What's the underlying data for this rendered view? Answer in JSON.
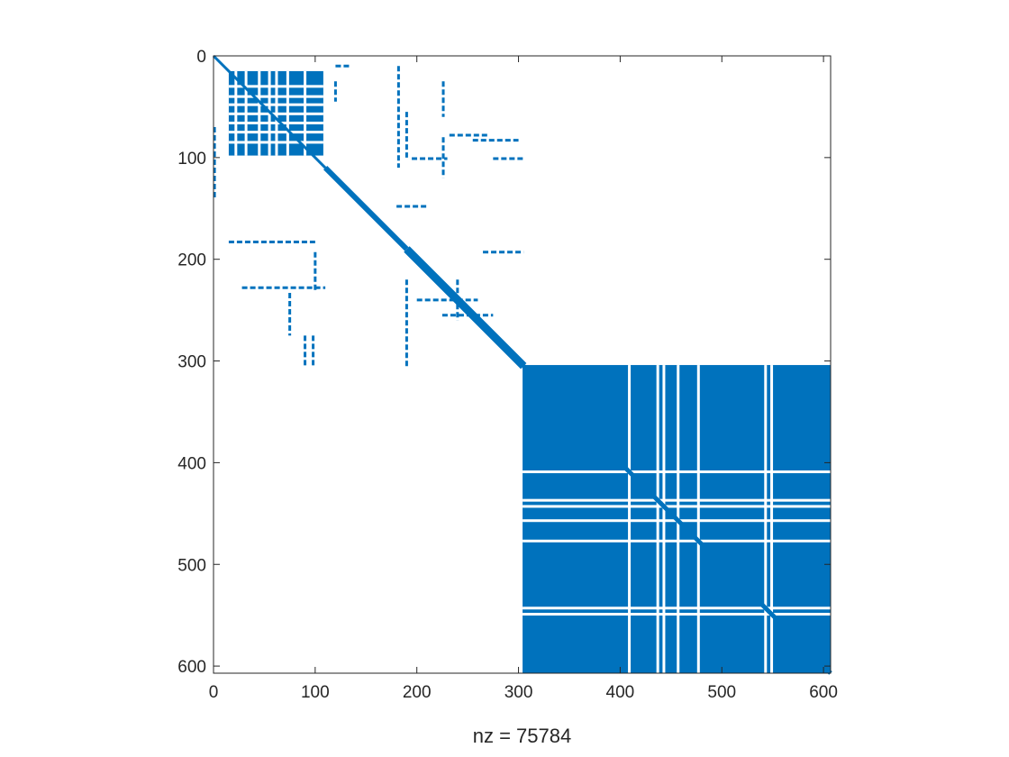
{
  "chart_data": {
    "type": "spy",
    "description_of_plot": "sparsity pattern of a 607x607 matrix",
    "xlabel": "nz = 75784",
    "ylabel": "",
    "title": "",
    "xlim": [
      0,
      607
    ],
    "ylim": [
      0,
      607
    ],
    "y_reversed": true,
    "xticks": [
      0,
      100,
      200,
      300,
      400,
      500,
      600
    ],
    "yticks": [
      0,
      100,
      200,
      300,
      400,
      500,
      600
    ],
    "xtick_labels": [
      "0",
      "100",
      "200",
      "300",
      "400",
      "500",
      "600"
    ],
    "ytick_labels": [
      "0",
      "100",
      "200",
      "300",
      "400",
      "500",
      "600"
    ],
    "grid": false,
    "marker_color": "#0072BD",
    "dense_block": {
      "rows": [
        304,
        607
      ],
      "cols": [
        304,
        607
      ],
      "empty_columns": [
        409,
        437,
        443,
        457,
        477,
        543,
        549
      ],
      "empty_rows": [
        409,
        437,
        443,
        457,
        477,
        543,
        549
      ]
    },
    "upper_block": {
      "rows": [
        15,
        98
      ],
      "cols": [
        15,
        108
      ],
      "empty_columns": [
        22,
        32,
        45,
        55,
        62,
        73,
        90
      ],
      "empty_rows": [
        30,
        40,
        48,
        57,
        66,
        75,
        85
      ]
    },
    "diagonal": [
      {
        "from": 0,
        "to": 110,
        "width": 3
      },
      {
        "from": 110,
        "to": 190,
        "width": 6
      },
      {
        "from": 190,
        "to": 305,
        "width": 9
      },
      {
        "from": 305,
        "to": 607,
        "width": 5
      }
    ],
    "segments": [
      {
        "type": "h",
        "row": 183,
        "col_from": 15,
        "col_to": 100
      },
      {
        "type": "h",
        "row": 228,
        "col_from": 28,
        "col_to": 110
      },
      {
        "type": "h",
        "row": 78,
        "col_from": 232,
        "col_to": 270
      },
      {
        "type": "h",
        "row": 101,
        "col_from": 195,
        "col_to": 230
      },
      {
        "type": "h",
        "row": 101,
        "col_from": 275,
        "col_to": 305
      },
      {
        "type": "h",
        "row": 10,
        "col_from": 120,
        "col_to": 135
      },
      {
        "type": "h",
        "row": 83,
        "col_from": 255,
        "col_to": 300
      },
      {
        "type": "h",
        "row": 193,
        "col_from": 265,
        "col_to": 305
      },
      {
        "type": "h",
        "row": 148,
        "col_from": 180,
        "col_to": 210
      },
      {
        "type": "h",
        "row": 255,
        "col_from": 225,
        "col_to": 275
      },
      {
        "type": "h",
        "row": 240,
        "col_from": 200,
        "col_to": 260
      },
      {
        "type": "v",
        "col": 75,
        "row_from": 233,
        "row_to": 275
      },
      {
        "type": "v",
        "col": 100,
        "row_from": 193,
        "row_to": 232
      },
      {
        "type": "v",
        "col": 90,
        "row_from": 275,
        "row_to": 305
      },
      {
        "type": "v",
        "col": 98,
        "row_from": 275,
        "row_to": 305
      },
      {
        "type": "v",
        "col": 120,
        "row_from": 25,
        "row_to": 45
      },
      {
        "type": "v",
        "col": 182,
        "row_from": 10,
        "row_to": 110
      },
      {
        "type": "v",
        "col": 226,
        "row_from": 25,
        "row_to": 60
      },
      {
        "type": "v",
        "col": 226,
        "row_from": 80,
        "row_to": 120
      },
      {
        "type": "v",
        "col": 190,
        "row_from": 220,
        "row_to": 305
      },
      {
        "type": "v",
        "col": 240,
        "row_from": 220,
        "row_to": 260
      },
      {
        "type": "v",
        "col": 1,
        "row_from": 70,
        "row_to": 140
      },
      {
        "type": "v",
        "col": 190,
        "row_from": 55,
        "row_to": 100
      }
    ]
  }
}
